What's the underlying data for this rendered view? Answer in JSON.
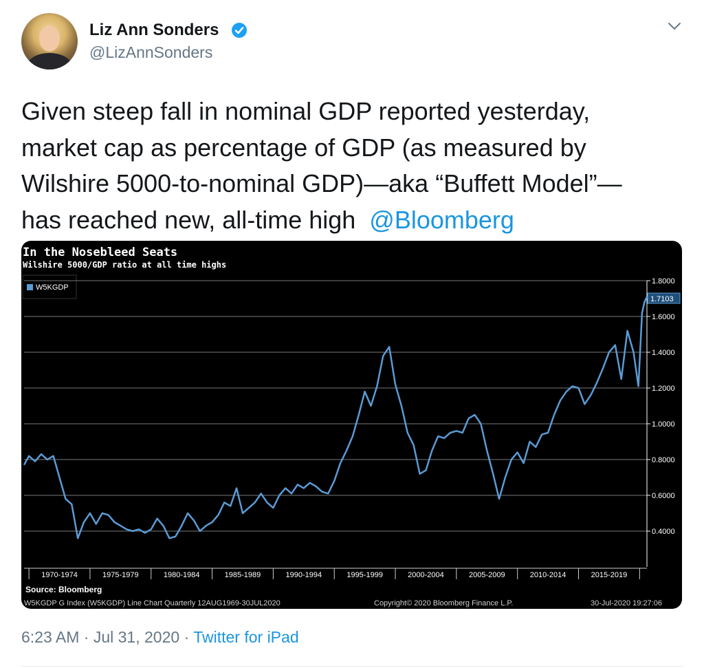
{
  "tweet": {
    "author_name": "Liz Ann Sonders",
    "handle": "@LizAnnSonders",
    "text_lines": [
      "Given steep fall in nominal GDP reported yesterday,",
      "market cap as percentage of GDP (as measured by",
      "Wilshire 5000-to-nominal GDP)—aka “Buffett Model”—",
      "has reached new, all-time high"
    ],
    "mention": "@Bloomberg",
    "time": "6:23 AM",
    "separator": "·",
    "date": "Jul 31, 2020",
    "source": "Twitter for iPad"
  },
  "icons": {
    "verified": "verified-badge-icon",
    "caret": "chevron-down-icon"
  },
  "colors": {
    "mention": "#1b95e0",
    "secondary_text": "#657786",
    "chart_bg": "#000000",
    "series_line": "#5b9bd5",
    "last_value_tag": "#1f4e79"
  },
  "chart_data": {
    "type": "line",
    "title": "In the Nosebleed Seats",
    "subtitle": "Wilshire 5000/GDP ratio at all time highs",
    "legend": [
      "W5KGDP"
    ],
    "legend_position": "top-left",
    "x_tick_labels": [
      "1970-1974",
      "1975-1979",
      "1980-1984",
      "1985-1989",
      "1990-1994",
      "1995-1999",
      "2000-2004",
      "2005-2009",
      "2010-2014",
      "2015-2019"
    ],
    "y_tick_labels": [
      "1.8000",
      "1.6000",
      "1.4000",
      "1.2000",
      "1.0000",
      "0.8000",
      "0.6000",
      "0.4000"
    ],
    "ylim": [
      0.2,
      1.8
    ],
    "xlim": [
      1969.6,
      2020.6
    ],
    "grid": true,
    "last_value_label": "1.7103",
    "source_label": "Source: Bloomberg",
    "footer_left": "W5KGDP G Index (W5KGDP) Line Chart  Quarterly 12AUG1969-30JUL2020",
    "footer_center": "Copyright© 2020 Bloomberg Finance L.P.",
    "footer_right": "30-Jul-2020 19:27:06",
    "series": [
      {
        "name": "W5KGDP",
        "x": [
          1969.6,
          1970.0,
          1970.5,
          1971.0,
          1971.5,
          1972.0,
          1972.5,
          1973.0,
          1973.5,
          1974.0,
          1974.5,
          1975.0,
          1975.5,
          1976.0,
          1976.5,
          1977.0,
          1977.5,
          1978.0,
          1978.5,
          1979.0,
          1979.5,
          1980.0,
          1980.5,
          1981.0,
          1981.5,
          1982.0,
          1982.5,
          1983.0,
          1983.5,
          1984.0,
          1984.5,
          1985.0,
          1985.5,
          1986.0,
          1986.5,
          1987.0,
          1987.5,
          1988.0,
          1988.5,
          1989.0,
          1989.5,
          1990.0,
          1990.5,
          1991.0,
          1991.5,
          1992.0,
          1992.5,
          1993.0,
          1993.5,
          1994.0,
          1994.5,
          1995.0,
          1995.5,
          1996.0,
          1996.5,
          1997.0,
          1997.5,
          1998.0,
          1998.5,
          1999.0,
          1999.5,
          2000.0,
          2000.5,
          2001.0,
          2001.5,
          2002.0,
          2002.5,
          2003.0,
          2003.5,
          2004.0,
          2004.5,
          2005.0,
          2005.5,
          2006.0,
          2006.5,
          2007.0,
          2007.5,
          2008.0,
          2008.5,
          2009.0,
          2009.5,
          2010.0,
          2010.5,
          2011.0,
          2011.5,
          2012.0,
          2012.5,
          2013.0,
          2013.5,
          2014.0,
          2014.5,
          2015.0,
          2015.5,
          2016.0,
          2016.5,
          2017.0,
          2017.5,
          2018.0,
          2018.5,
          2019.0,
          2019.5,
          2019.9,
          2020.2,
          2020.4,
          2020.6
        ],
        "values": [
          0.77,
          0.82,
          0.79,
          0.83,
          0.8,
          0.82,
          0.7,
          0.58,
          0.55,
          0.36,
          0.45,
          0.5,
          0.44,
          0.5,
          0.49,
          0.45,
          0.43,
          0.41,
          0.4,
          0.41,
          0.39,
          0.41,
          0.47,
          0.43,
          0.36,
          0.37,
          0.43,
          0.5,
          0.46,
          0.4,
          0.43,
          0.45,
          0.49,
          0.56,
          0.54,
          0.64,
          0.5,
          0.53,
          0.56,
          0.61,
          0.56,
          0.53,
          0.6,
          0.64,
          0.61,
          0.66,
          0.64,
          0.67,
          0.65,
          0.62,
          0.61,
          0.68,
          0.78,
          0.85,
          0.93,
          1.05,
          1.18,
          1.1,
          1.21,
          1.38,
          1.43,
          1.22,
          1.1,
          0.95,
          0.88,
          0.72,
          0.74,
          0.85,
          0.93,
          0.92,
          0.95,
          0.96,
          0.95,
          1.03,
          1.05,
          1.0,
          0.85,
          0.72,
          0.58,
          0.7,
          0.8,
          0.84,
          0.78,
          0.9,
          0.87,
          0.94,
          0.95,
          1.05,
          1.13,
          1.18,
          1.21,
          1.2,
          1.11,
          1.16,
          1.23,
          1.31,
          1.4,
          1.44,
          1.25,
          1.52,
          1.4,
          1.21,
          1.62,
          1.68,
          1.7103
        ]
      }
    ]
  }
}
